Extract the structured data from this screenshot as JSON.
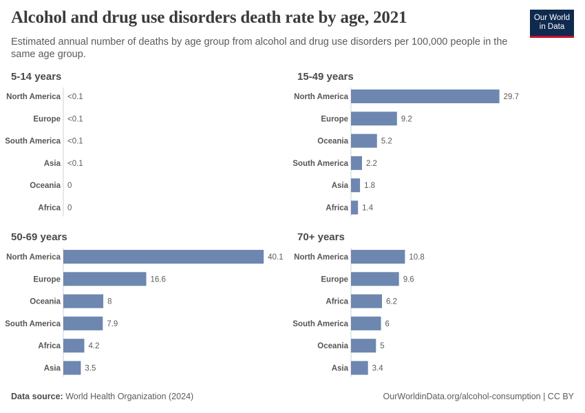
{
  "header": {
    "title": "Alcohol and drug use disorders death rate by age, 2021",
    "subtitle": "Estimated annual number of deaths by age group from alcohol and drug use disorders per 100,000 people in the same age group.",
    "logo": "Our World in Data"
  },
  "footer": {
    "source_label": "Data source:",
    "source": "World Health Organization (2024)",
    "url": "OurWorldinData.org/alcohol-consumption | CC BY"
  },
  "colors": {
    "bar": "#6d87b0",
    "text": "#5b5b5b",
    "axis": "#d0d0d0"
  },
  "chart_data": [
    {
      "type": "bar",
      "orientation": "horizontal",
      "title": "5-14 years",
      "categories": [
        "North America",
        "Europe",
        "South America",
        "Asia",
        "Oceania",
        "Africa"
      ],
      "values": [
        0,
        0,
        0,
        0,
        0,
        0
      ],
      "labels": [
        "<0.1",
        "<0.1",
        "<0.1",
        "<0.1",
        "0",
        "0"
      ]
    },
    {
      "type": "bar",
      "orientation": "horizontal",
      "title": "15-49 years",
      "categories": [
        "North America",
        "Europe",
        "Oceania",
        "South America",
        "Asia",
        "Africa"
      ],
      "values": [
        29.7,
        9.2,
        5.2,
        2.2,
        1.8,
        1.4
      ],
      "labels": [
        "29.7",
        "9.2",
        "5.2",
        "2.2",
        "1.8",
        "1.4"
      ]
    },
    {
      "type": "bar",
      "orientation": "horizontal",
      "title": "50-69 years",
      "categories": [
        "North America",
        "Europe",
        "Oceania",
        "South America",
        "Africa",
        "Asia"
      ],
      "values": [
        40.1,
        16.6,
        8,
        7.9,
        4.2,
        3.5
      ],
      "labels": [
        "40.1",
        "16.6",
        "8",
        "7.9",
        "4.2",
        "3.5"
      ]
    },
    {
      "type": "bar",
      "orientation": "horizontal",
      "title": "70+ years",
      "categories": [
        "North America",
        "Europe",
        "Africa",
        "South America",
        "Oceania",
        "Asia"
      ],
      "values": [
        10.8,
        9.6,
        6.2,
        6,
        5,
        3.4
      ],
      "labels": [
        "10.8",
        "9.6",
        "6.2",
        "6",
        "5",
        "3.4"
      ]
    }
  ]
}
